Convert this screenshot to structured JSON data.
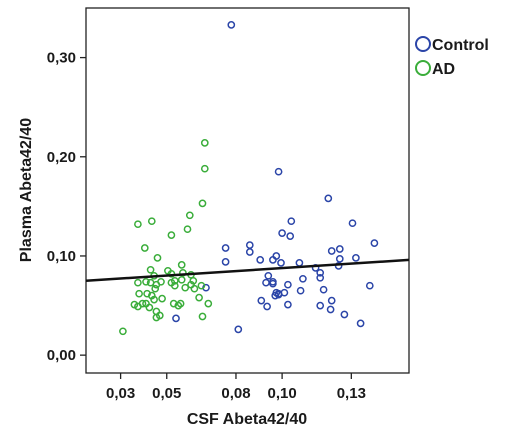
{
  "chart_data": {
    "type": "scatter",
    "xlabel": "CSF Abeta42/40",
    "ylabel": "Plasma Abeta42/40",
    "xlim": [
      0.015,
      0.155
    ],
    "ylim": [
      -0.018,
      0.35
    ],
    "x_ticks": [
      {
        "value": 0.03,
        "label": "0,03"
      },
      {
        "value": 0.05,
        "label": "0,05"
      },
      {
        "value": 0.08,
        "label": "0,08"
      },
      {
        "value": 0.1,
        "label": "0,10"
      },
      {
        "value": 0.13,
        "label": "0,13"
      }
    ],
    "y_ticks": [
      {
        "value": 0.0,
        "label": "0,00"
      },
      {
        "value": 0.1,
        "label": "0,10"
      },
      {
        "value": 0.2,
        "label": "0,20"
      },
      {
        "value": 0.3,
        "label": "0,30"
      }
    ],
    "grid": false,
    "legend_position": "outside-top-right",
    "fit_line": {
      "x": [
        0.015,
        0.155
      ],
      "y": [
        0.075,
        0.096
      ],
      "color": "#111111"
    },
    "series": [
      {
        "name": "Control",
        "color": "#2b45a8",
        "points": [
          [
            0.078,
            0.333
          ],
          [
            0.0985,
            0.185
          ],
          [
            0.12,
            0.158
          ],
          [
            0.104,
            0.135
          ],
          [
            0.1305,
            0.133
          ],
          [
            0.1,
            0.123
          ],
          [
            0.1035,
            0.12
          ],
          [
            0.14,
            0.113
          ],
          [
            0.086,
            0.111
          ],
          [
            0.0755,
            0.108
          ],
          [
            0.125,
            0.107
          ],
          [
            0.1215,
            0.105
          ],
          [
            0.086,
            0.104
          ],
          [
            0.0975,
            0.1
          ],
          [
            0.132,
            0.098
          ],
          [
            0.125,
            0.097
          ],
          [
            0.096,
            0.096
          ],
          [
            0.0905,
            0.096
          ],
          [
            0.0755,
            0.094
          ],
          [
            0.0995,
            0.093
          ],
          [
            0.1075,
            0.093
          ],
          [
            0.1245,
            0.09
          ],
          [
            0.1145,
            0.088
          ],
          [
            0.1165,
            0.083
          ],
          [
            0.094,
            0.08
          ],
          [
            0.1165,
            0.078
          ],
          [
            0.109,
            0.077
          ],
          [
            0.096,
            0.074
          ],
          [
            0.093,
            0.073
          ],
          [
            0.096,
            0.072
          ],
          [
            0.1025,
            0.071
          ],
          [
            0.138,
            0.07
          ],
          [
            0.067,
            0.068
          ],
          [
            0.118,
            0.066
          ],
          [
            0.108,
            0.065
          ],
          [
            0.0975,
            0.063
          ],
          [
            0.0985,
            0.062
          ],
          [
            0.101,
            0.063
          ],
          [
            0.0985,
            0.061
          ],
          [
            0.097,
            0.06
          ],
          [
            0.1215,
            0.055
          ],
          [
            0.091,
            0.055
          ],
          [
            0.1025,
            0.051
          ],
          [
            0.1165,
            0.05
          ],
          [
            0.0935,
            0.049
          ],
          [
            0.121,
            0.046
          ],
          [
            0.127,
            0.041
          ],
          [
            0.054,
            0.037
          ],
          [
            0.134,
            0.032
          ],
          [
            0.081,
            0.026
          ]
        ]
      },
      {
        "name": "AD",
        "color": "#3aad3a",
        "points": [
          [
            0.0665,
            0.214
          ],
          [
            0.0665,
            0.188
          ],
          [
            0.0655,
            0.153
          ],
          [
            0.06,
            0.141
          ],
          [
            0.0375,
            0.132
          ],
          [
            0.0435,
            0.135
          ],
          [
            0.059,
            0.127
          ],
          [
            0.052,
            0.121
          ],
          [
            0.0405,
            0.108
          ],
          [
            0.046,
            0.098
          ],
          [
            0.0565,
            0.091
          ],
          [
            0.043,
            0.086
          ],
          [
            0.0505,
            0.085
          ],
          [
            0.052,
            0.082
          ],
          [
            0.057,
            0.083
          ],
          [
            0.0605,
            0.081
          ],
          [
            0.0445,
            0.08
          ],
          [
            0.0565,
            0.076
          ],
          [
            0.0615,
            0.075
          ],
          [
            0.0535,
            0.075
          ],
          [
            0.0375,
            0.073
          ],
          [
            0.041,
            0.074
          ],
          [
            0.043,
            0.073
          ],
          [
            0.0475,
            0.074
          ],
          [
            0.052,
            0.073
          ],
          [
            0.0455,
            0.071
          ],
          [
            0.0535,
            0.07
          ],
          [
            0.0605,
            0.071
          ],
          [
            0.065,
            0.07
          ],
          [
            0.058,
            0.068
          ],
          [
            0.062,
            0.067
          ],
          [
            0.045,
            0.067
          ],
          [
            0.0415,
            0.062
          ],
          [
            0.0435,
            0.06
          ],
          [
            0.038,
            0.062
          ],
          [
            0.064,
            0.058
          ],
          [
            0.048,
            0.057
          ],
          [
            0.0445,
            0.056
          ],
          [
            0.041,
            0.052
          ],
          [
            0.0395,
            0.052
          ],
          [
            0.036,
            0.051
          ],
          [
            0.053,
            0.052
          ],
          [
            0.055,
            0.05
          ],
          [
            0.056,
            0.052
          ],
          [
            0.068,
            0.052
          ],
          [
            0.0425,
            0.048
          ],
          [
            0.0455,
            0.044
          ],
          [
            0.0375,
            0.049
          ],
          [
            0.047,
            0.04
          ],
          [
            0.0655,
            0.039
          ],
          [
            0.0455,
            0.038
          ],
          [
            0.031,
            0.024
          ]
        ]
      }
    ]
  }
}
